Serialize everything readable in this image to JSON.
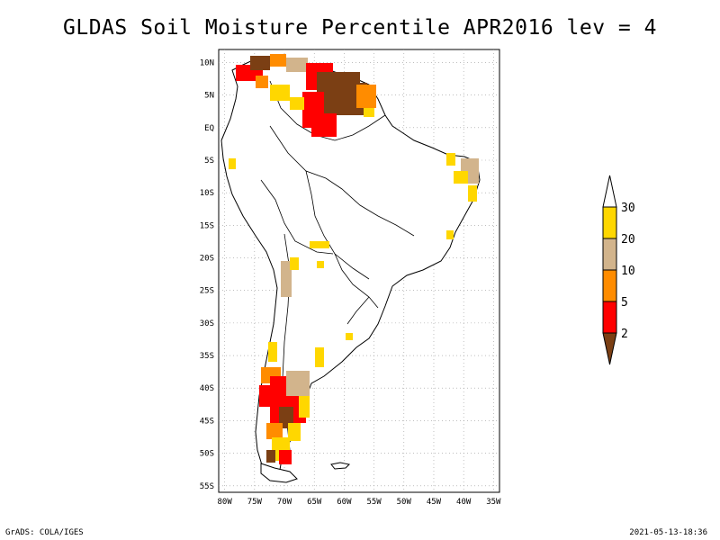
{
  "title": "GLDAS Soil Moisture Percentile APR2016 lev = 4",
  "footer": {
    "left": "GrADS: COLA/IGES",
    "right": "2021-05-13-18:36"
  },
  "map": {
    "lat_ticks": [
      "10N",
      "5N",
      "EQ",
      "5S",
      "10S",
      "15S",
      "20S",
      "25S",
      "30S",
      "35S",
      "40S",
      "45S",
      "50S",
      "55S"
    ],
    "lon_ticks": [
      "80W",
      "75W",
      "70W",
      "65W",
      "60W",
      "55W",
      "50W",
      "45W",
      "40W",
      "35W"
    ],
    "lat_range": [
      -56,
      12
    ],
    "lon_range": [
      -81,
      -34
    ]
  },
  "legend": {
    "colors": [
      "#7b3f14",
      "#ff0000",
      "#ff8c00",
      "#d2b48c",
      "#ffd700",
      "#ffffff"
    ],
    "labels": [
      "2",
      "5",
      "10",
      "20",
      "30"
    ]
  }
}
